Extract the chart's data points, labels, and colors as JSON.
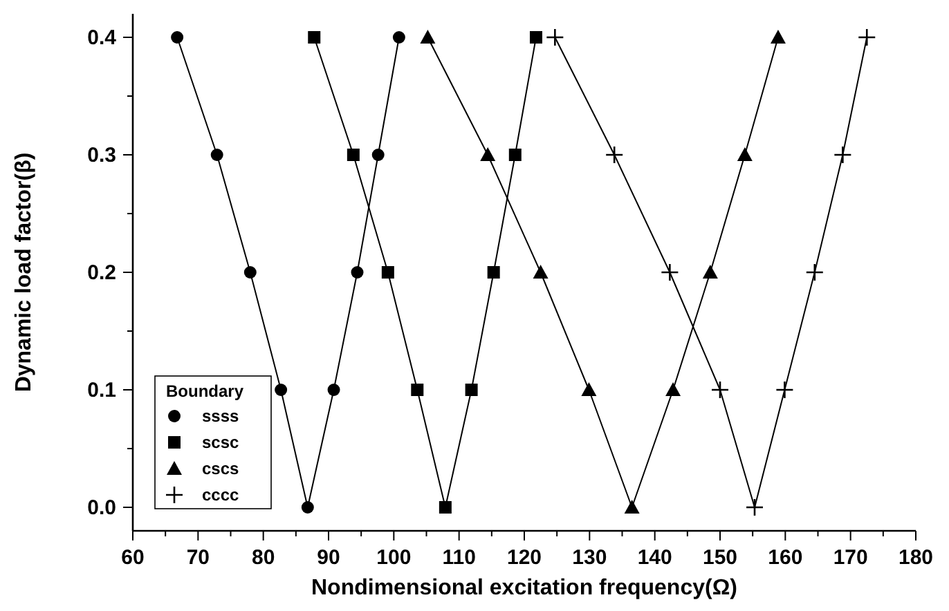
{
  "chart_data": {
    "type": "line",
    "xlabel": "Nondimensional excitation frequency(Ω)",
    "ylabel": "Dynamic load factor(β)",
    "legend_title": "Boundary",
    "legend": "bottom left",
    "xlim": [
      60,
      180
    ],
    "ylim": [
      -0.02,
      0.42
    ],
    "xticks": [
      60,
      {
        "value": 65,
        "label": null
      },
      70,
      {
        "value": 75,
        "label": null
      },
      80,
      {
        "value": 85,
        "label": null
      },
      90,
      {
        "value": 95,
        "label": null
      },
      100,
      {
        "value": 105,
        "label": null
      },
      110,
      {
        "value": 115,
        "label": null
      },
      120,
      {
        "value": 125,
        "label": null
      },
      130,
      {
        "value": 135,
        "label": null
      },
      140,
      {
        "value": 145,
        "label": null
      },
      150,
      {
        "value": 155,
        "label": null
      },
      160,
      {
        "value": 165,
        "label": null
      },
      170,
      {
        "value": 175,
        "label": null
      },
      180
    ],
    "yticks": [
      {
        "value": 0,
        "label": "0.0"
      },
      {
        "value": 0.05,
        "label": null
      },
      0.1,
      {
        "value": 0.15,
        "label": null
      },
      0.2,
      {
        "value": 0.25,
        "label": null
      },
      0.3,
      {
        "value": 0.35,
        "label": null
      },
      0.4
    ],
    "grid": false,
    "series": [
      {
        "name": "ssss",
        "color": "#000000",
        "marker": "circle",
        "x": [
          66.8,
          72.9,
          78.0,
          82.7,
          86.8,
          90.8,
          94.4,
          97.6,
          100.8
        ],
        "values": [
          0.4,
          0.3,
          0.2,
          0.1,
          0,
          0.1,
          0.2,
          0.3,
          0.4
        ]
      },
      {
        "name": "scsc",
        "color": "#000000",
        "marker": "square",
        "x": [
          87.8,
          93.8,
          99.1,
          103.6,
          107.9,
          111.9,
          115.3,
          118.6,
          121.8
        ],
        "values": [
          0.4,
          0.3,
          0.2,
          0.1,
          0,
          0.1,
          0.2,
          0.3,
          0.4
        ]
      },
      {
        "name": "cscs",
        "color": "#000000",
        "marker": "triangle",
        "x": [
          105.2,
          114.4,
          122.5,
          129.9,
          136.5,
          142.8,
          148.5,
          153.8,
          158.9
        ],
        "values": [
          0.4,
          0.3,
          0.2,
          0.1,
          0,
          0.1,
          0.2,
          0.3,
          0.4
        ]
      },
      {
        "name": "cccc",
        "color": "#000000",
        "marker": "cross",
        "x": [
          124.7,
          133.8,
          142.3,
          150.0,
          155.3,
          159.9,
          164.5,
          168.8,
          172.5
        ],
        "values": [
          0.4,
          0.3,
          0.2,
          0.1,
          0,
          0.1,
          0.2,
          0.3,
          0.4
        ]
      }
    ]
  }
}
